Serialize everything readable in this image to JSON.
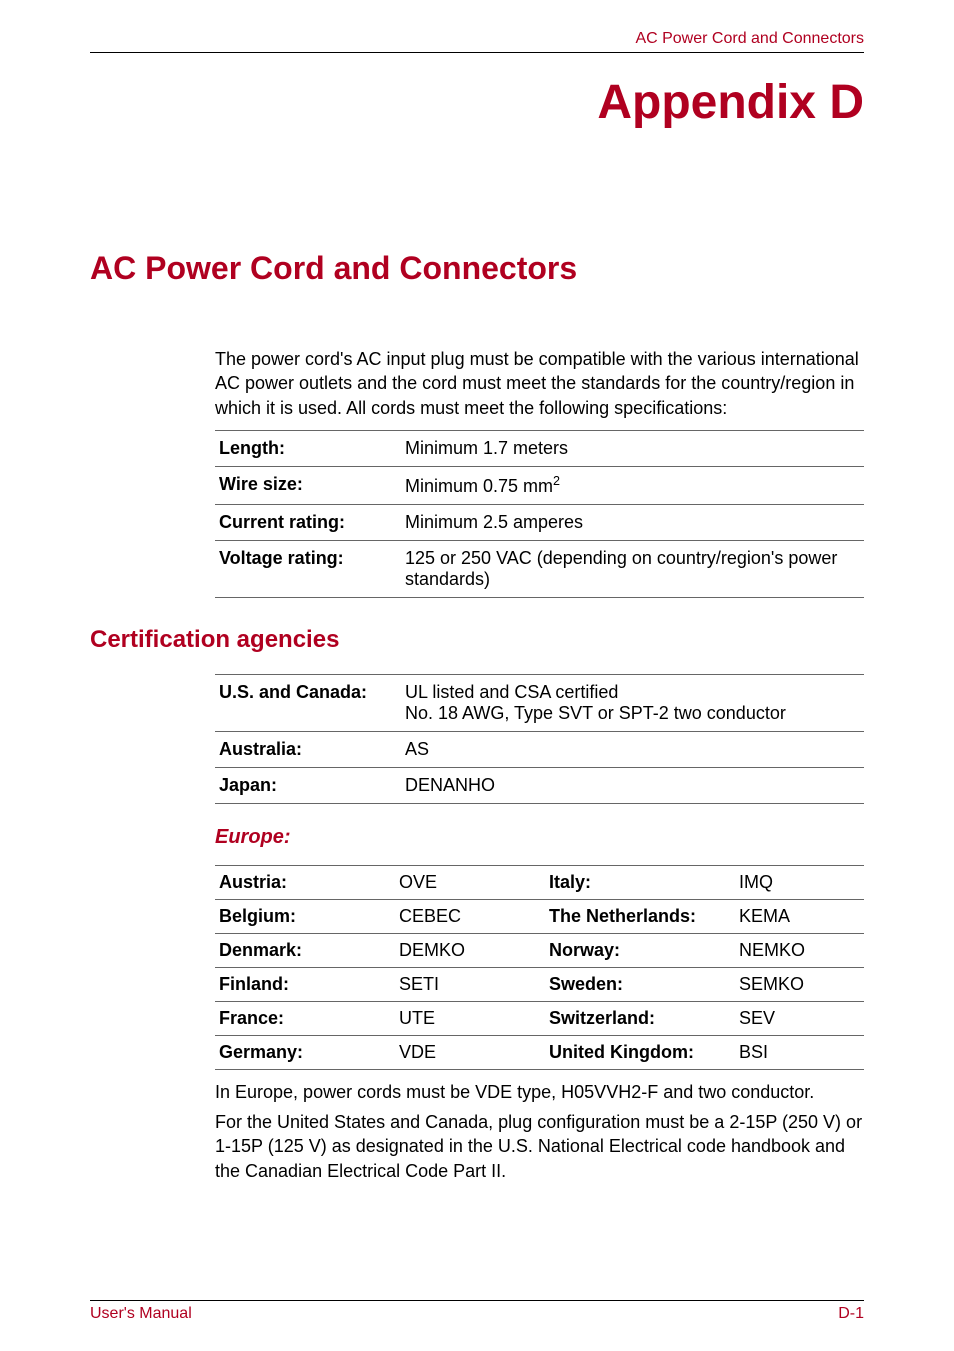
{
  "colors": {
    "header_text": "#b00020",
    "appendix_title": "#b00020",
    "section_title": "#b00020",
    "sub_heading": "#b00020",
    "europe_label": "#b00020",
    "footer_text": "#b00020",
    "body_text": "#000000",
    "rule": "#666666"
  },
  "fonts": {
    "body_size_pt": 14,
    "appendix_title_pt": 36,
    "section_title_pt": 24,
    "sub_heading_pt": 18,
    "europe_label_pt": 15,
    "footer_pt": 12
  },
  "header": {
    "right": "AC Power Cord and Connectors"
  },
  "appendix": "Appendix D",
  "section_title": "AC Power Cord and Connectors",
  "intro": "The power cord's AC input plug must be compatible with the various international AC power outlets and the cord must meet the standards for the country/region in which it is used. All cords must meet the following specifications:",
  "specs": {
    "rows": [
      {
        "label": "Length:",
        "value": "Minimum 1.7 meters"
      },
      {
        "label": "Wire size:",
        "value": "Minimum 0.75 mm",
        "sup": "2"
      },
      {
        "label": "Current rating:",
        "value": "Minimum 2.5 amperes"
      },
      {
        "label": "Voltage rating:",
        "value": "125 or 250 VAC (depending on country/region's power standards)"
      }
    ]
  },
  "cert_heading": "Certification agencies",
  "cert": {
    "rows": [
      {
        "label": "U.S. and Canada:",
        "value": "UL listed and CSA certified\nNo. 18 AWG, Type SVT or SPT-2 two conductor"
      },
      {
        "label": "Australia:",
        "value": "AS"
      },
      {
        "label": "Japan:",
        "value": "DENANHO"
      }
    ]
  },
  "europe_label": "Europe:",
  "europe": {
    "rows": [
      {
        "l1": "Austria:",
        "v1": "OVE",
        "l2": "Italy:",
        "v2": "IMQ"
      },
      {
        "l1": "Belgium:",
        "v1": "CEBEC",
        "l2": "The Netherlands:",
        "v2": "KEMA"
      },
      {
        "l1": "Denmark:",
        "v1": "DEMKO",
        "l2": "Norway:",
        "v2": "NEMKO"
      },
      {
        "l1": "Finland:",
        "v1": "SETI",
        "l2": "Sweden:",
        "v2": "SEMKO"
      },
      {
        "l1": "France:",
        "v1": "UTE",
        "l2": "Switzerland:",
        "v2": "SEV"
      },
      {
        "l1": "Germany:",
        "v1": "VDE",
        "l2": "United Kingdom:",
        "v2": "BSI"
      }
    ]
  },
  "europe_note": "In Europe, power cords must be VDE type, H05VVH2-F and two conductor.",
  "us_note": "For the United States and Canada, plug configuration must be a 2-15P (250 V) or 1-15P (125 V) as designated in the U.S. National Electrical code handbook and the Canadian Electrical Code Part II.",
  "footer": {
    "left": "User's Manual",
    "right": "D-1"
  }
}
